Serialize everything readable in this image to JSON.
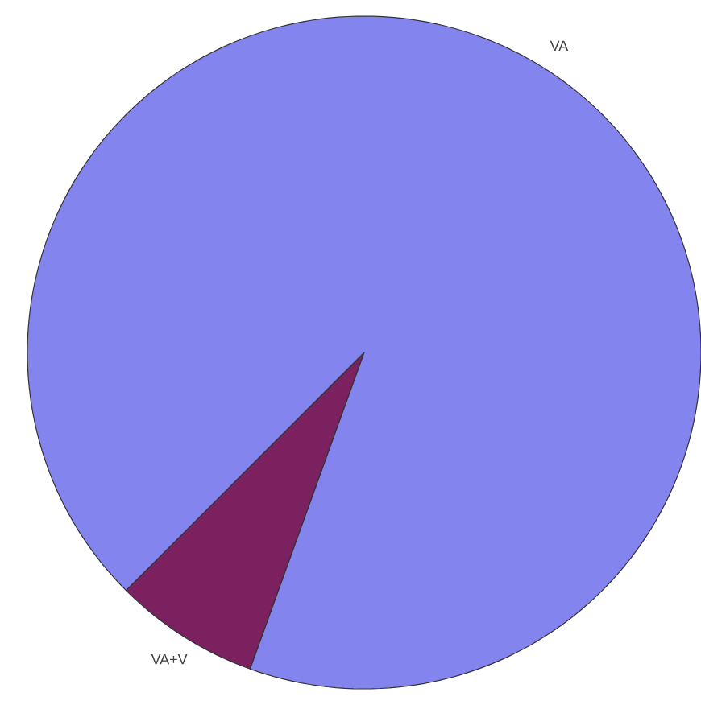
{
  "chart_data": {
    "type": "pie",
    "categories": [
      "VA+V",
      "VA"
    ],
    "values": [
      7,
      93
    ],
    "colors": [
      "#7b2160",
      "#8484ee"
    ]
  }
}
